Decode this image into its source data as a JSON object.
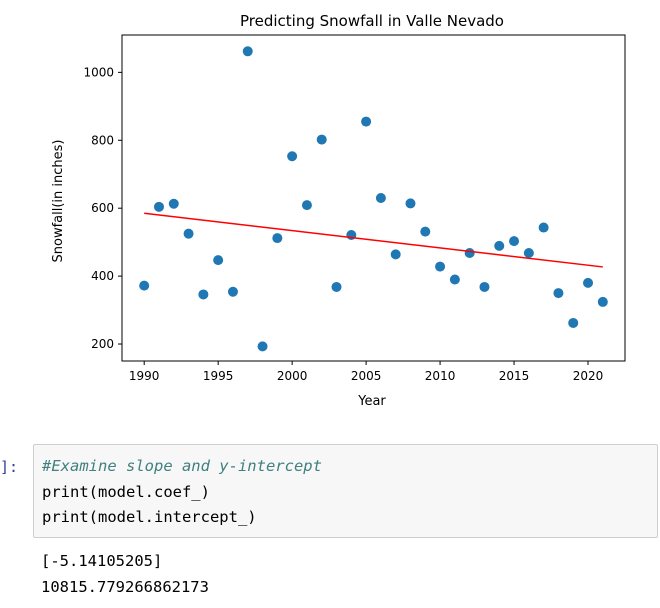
{
  "chart_data": {
    "type": "scatter",
    "title": "Predicting Snowfall in Valle Nevado",
    "xlabel": "Year",
    "ylabel": "Snowfall(in inches)",
    "xlim": [
      1988.5,
      2022.5
    ],
    "ylim": [
      150,
      1110
    ],
    "xticks": [
      1990,
      1995,
      2000,
      2005,
      2010,
      2015,
      2020
    ],
    "yticks": [
      200,
      400,
      600,
      800,
      1000
    ],
    "grid": false,
    "point_color": "#1f77b4",
    "line_color": "#ff0000",
    "points": [
      {
        "x": 1990,
        "y": 372
      },
      {
        "x": 1991,
        "y": 604
      },
      {
        "x": 1992,
        "y": 613
      },
      {
        "x": 1993,
        "y": 525
      },
      {
        "x": 1994,
        "y": 346
      },
      {
        "x": 1995,
        "y": 447
      },
      {
        "x": 1996,
        "y": 354
      },
      {
        "x": 1997,
        "y": 1062
      },
      {
        "x": 1998,
        "y": 193
      },
      {
        "x": 1999,
        "y": 512
      },
      {
        "x": 2000,
        "y": 753
      },
      {
        "x": 2001,
        "y": 609
      },
      {
        "x": 2002,
        "y": 802
      },
      {
        "x": 2003,
        "y": 368
      },
      {
        "x": 2004,
        "y": 521
      },
      {
        "x": 2005,
        "y": 855
      },
      {
        "x": 2006,
        "y": 630
      },
      {
        "x": 2007,
        "y": 464
      },
      {
        "x": 2008,
        "y": 614
      },
      {
        "x": 2009,
        "y": 531
      },
      {
        "x": 2010,
        "y": 428
      },
      {
        "x": 2011,
        "y": 390
      },
      {
        "x": 2012,
        "y": 468
      },
      {
        "x": 2013,
        "y": 368
      },
      {
        "x": 2014,
        "y": 489
      },
      {
        "x": 2015,
        "y": 503
      },
      {
        "x": 2016,
        "y": 468
      },
      {
        "x": 2017,
        "y": 543
      },
      {
        "x": 2018,
        "y": 350
      },
      {
        "x": 2019,
        "y": 262
      },
      {
        "x": 2020,
        "y": 380
      },
      {
        "x": 2021,
        "y": 324
      }
    ],
    "fit_line": [
      {
        "x": 1990,
        "y": 585
      },
      {
        "x": 2021,
        "y": 427
      }
    ]
  },
  "notebook": {
    "prompt": "]:",
    "code_comment": "#Examine slope and y-intercept",
    "code_line_2": "print(model.coef_)",
    "code_line_3": "print(model.intercept_)",
    "output_line_1": "[-5.14105205]",
    "output_line_2": "10815.779266862173"
  }
}
